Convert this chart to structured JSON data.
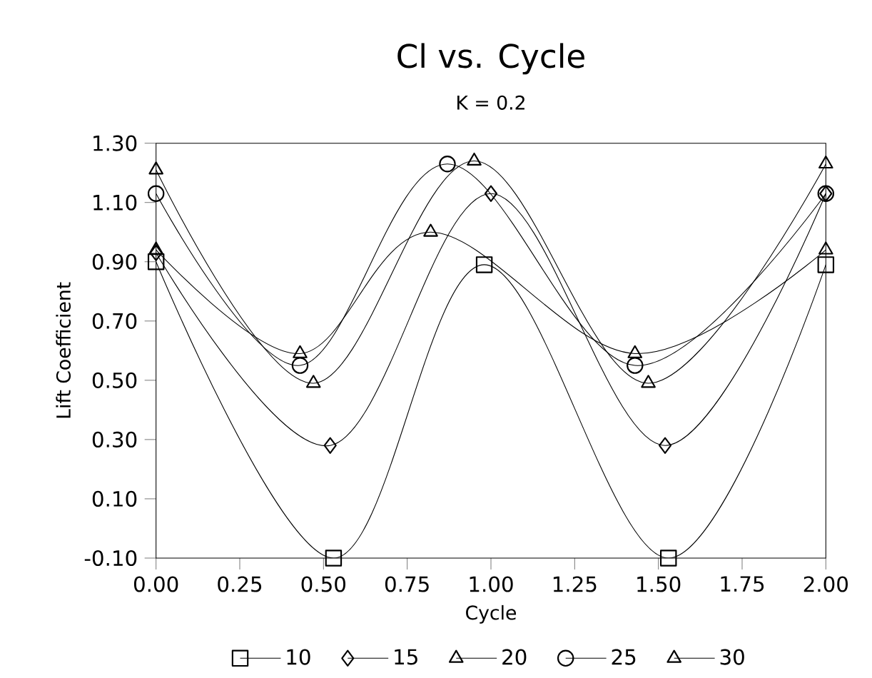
{
  "chart_data": {
    "type": "line",
    "title": "Cl   vs.   Cycle",
    "subtitle": "K  =  0.2",
    "xlabel": "Cycle",
    "ylabel": "Lift  Coefficient",
    "xlim": [
      0,
      2
    ],
    "ylim": [
      -0.1,
      1.3
    ],
    "xticks": [
      {
        "value": 0,
        "label": "0.00"
      },
      {
        "value": 0.25,
        "label": "0.25"
      },
      {
        "value": 0.5,
        "label": "0.50"
      },
      {
        "value": 0.75,
        "label": "0.75"
      },
      {
        "value": 1,
        "label": "1.00"
      },
      {
        "value": 1.25,
        "label": "1.25"
      },
      {
        "value": 1.5,
        "label": "1.50"
      },
      {
        "value": 1.75,
        "label": "1.75"
      },
      {
        "value": 2,
        "label": "2.00"
      }
    ],
    "yticks": [
      {
        "value": -0.1,
        "label": "-0.10"
      },
      {
        "value": 0.1,
        "label": "0.10"
      },
      {
        "value": 0.3,
        "label": "0.30"
      },
      {
        "value": 0.5,
        "label": "0.50"
      },
      {
        "value": 0.7,
        "label": "0.70"
      },
      {
        "value": 0.9,
        "label": "0.90"
      },
      {
        "value": 1.1,
        "label": "1.10"
      },
      {
        "value": 1.3,
        "label": "1.30"
      }
    ],
    "legend": "bottom",
    "grid": false,
    "line_style": "solid",
    "series": [
      {
        "name": "10",
        "color": "#000000",
        "marker": "square",
        "x": [
          0,
          0.53,
          0.98,
          1.53,
          2.0
        ],
        "values": [
          0.9,
          -0.1,
          0.89,
          -0.1,
          0.89
        ]
      },
      {
        "name": "15",
        "color": "#000000",
        "marker": "diamond",
        "x": [
          0,
          0.52,
          1.0,
          1.52,
          2.0
        ],
        "values": [
          0.93,
          0.28,
          1.13,
          0.28,
          1.13
        ]
      },
      {
        "name": "20",
        "color": "#000000",
        "marker": "triangle",
        "x": [
          0,
          0.47,
          0.95,
          1.47,
          2.0
        ],
        "values": [
          1.21,
          0.49,
          1.24,
          0.49,
          1.23
        ]
      },
      {
        "name": "25",
        "color": "#000000",
        "marker": "circle",
        "x": [
          0,
          0.43,
          0.87,
          1.43,
          2.0
        ],
        "values": [
          1.13,
          0.55,
          1.23,
          0.55,
          1.13
        ]
      },
      {
        "name": "30",
        "color": "#000000",
        "marker": "triangle",
        "x": [
          0,
          0.43,
          0.82,
          1.43,
          2.0
        ],
        "values": [
          0.94,
          0.59,
          1.0,
          0.59,
          0.94
        ]
      }
    ]
  }
}
